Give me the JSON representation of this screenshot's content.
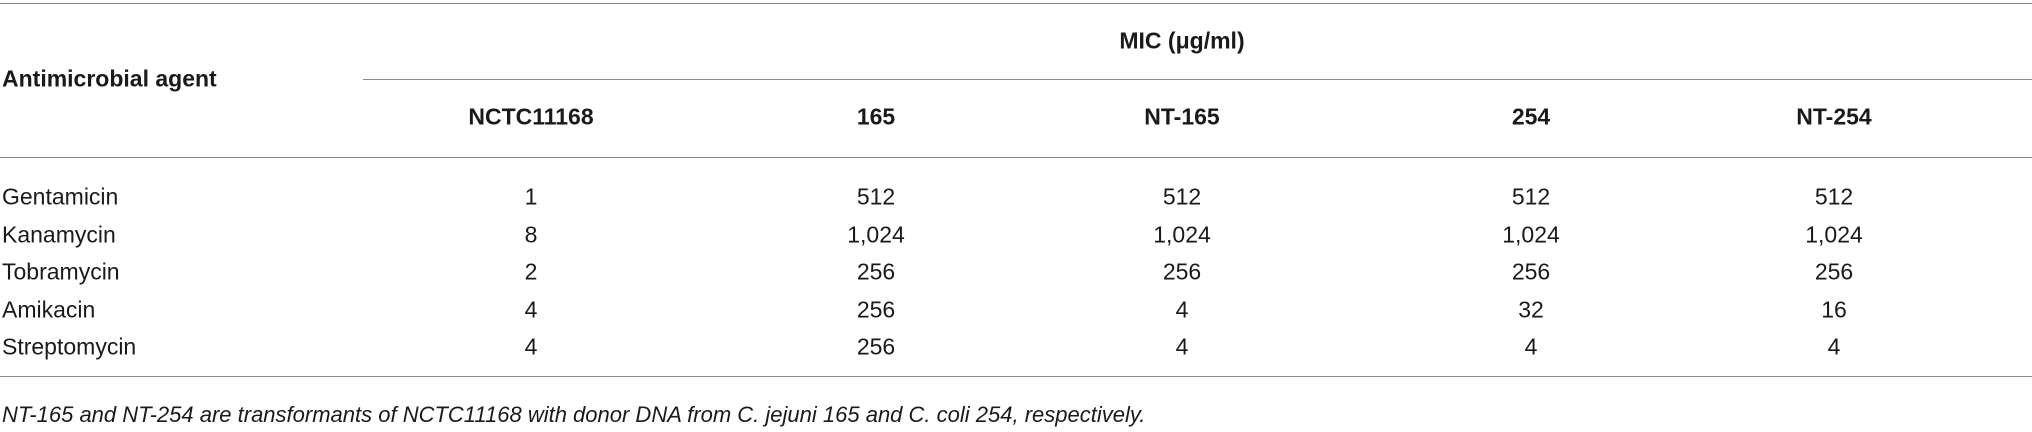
{
  "table": {
    "group_header": "MIC (μg/ml)",
    "row_header": "Antimicrobial agent",
    "columns": [
      "NCTC11168",
      "165",
      "NT-165",
      "254",
      "NT-254"
    ],
    "rows": [
      [
        "Gentamicin",
        "1",
        "512",
        "512",
        "512",
        "512"
      ],
      [
        "Kanamycin",
        "8",
        "1,024",
        "1,024",
        "1,024",
        "1,024"
      ],
      [
        "Tobramycin",
        "2",
        "256",
        "256",
        "256",
        "256"
      ],
      [
        "Amikacin",
        "4",
        "256",
        "4",
        "32",
        "16"
      ],
      [
        "Streptomycin",
        "4",
        "256",
        "4",
        "4",
        "4"
      ]
    ]
  },
  "footnote": "NT-165 and NT-254 are transformants of NCTC11168 with donor DNA from C. jejuni 165 and C. coli 254, respectively."
}
